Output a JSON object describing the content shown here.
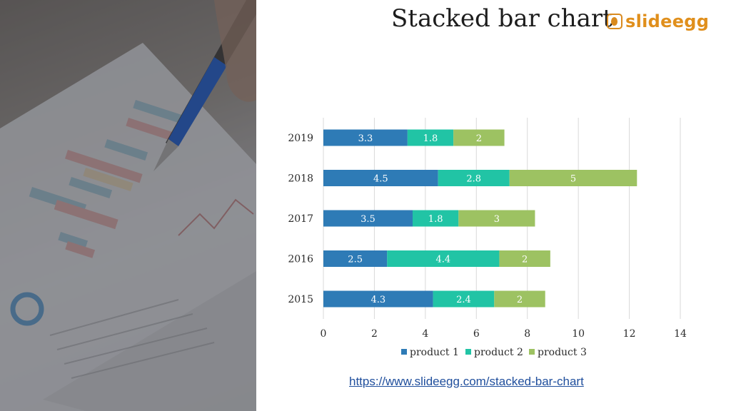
{
  "slide": {
    "title": "Stacked bar chart",
    "logo_text": "slideegg",
    "url": "https://www.slideegg.com/stacked-bar-chart"
  },
  "colors": {
    "product_1": "#2e7bb6",
    "product_2": "#21c4a5",
    "product_3": "#9dc262",
    "gridline": "#d9d9d9",
    "axis_text": "#2b2b2b",
    "link": "#1f4e9c",
    "logo": "#e08f1c"
  },
  "chart_data": {
    "type": "bar",
    "orientation": "horizontal",
    "stacked": true,
    "categories": [
      "2019",
      "2018",
      "2017",
      "2016",
      "2015"
    ],
    "series": [
      {
        "name": "product 1",
        "values": [
          3.3,
          4.5,
          3.5,
          2.5,
          4.3
        ]
      },
      {
        "name": "product 2",
        "values": [
          1.8,
          2.8,
          1.8,
          4.4,
          2.4
        ]
      },
      {
        "name": "product 3",
        "values": [
          2,
          5,
          3,
          2,
          2
        ]
      }
    ],
    "xlim": [
      0,
      14
    ],
    "xticks": [
      0,
      2,
      4,
      6,
      8,
      10,
      12,
      14
    ],
    "grid": true,
    "legend": "bottom",
    "data_labels": true
  }
}
